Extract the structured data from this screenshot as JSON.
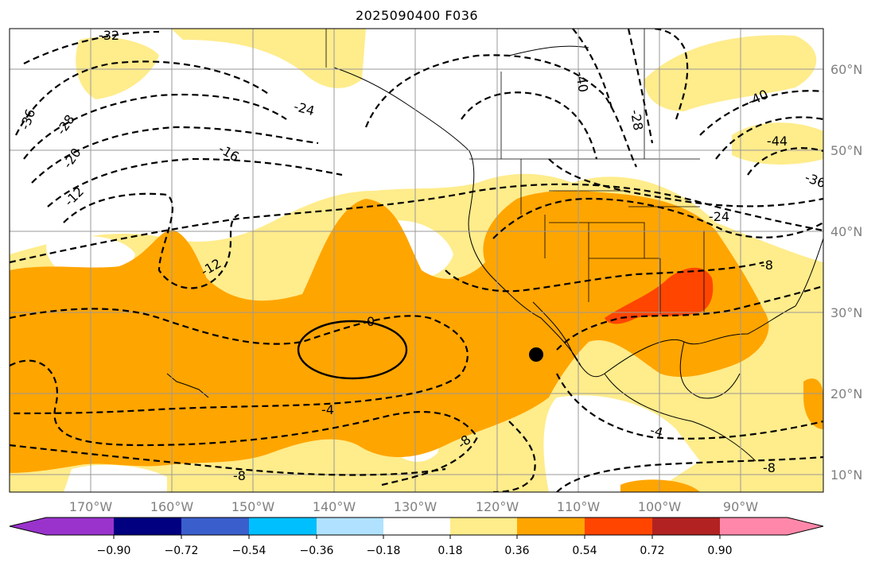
{
  "title": "2025090400 F036",
  "lat_labels": [
    "60°N",
    "50°N",
    "40°N",
    "30°N",
    "20°N",
    "10°N"
  ],
  "lon_labels": [
    "170°W",
    "160°W",
    "150°W",
    "140°W",
    "130°W",
    "120°W",
    "110°W",
    "100°W",
    "90°W"
  ],
  "contour_labels": [
    "-32",
    "-36",
    "-28",
    "-20",
    "-12",
    "-24",
    "-16",
    "-12",
    "-40",
    "-28",
    "-40",
    "-44",
    "-36",
    "-24",
    "-8",
    "0",
    "-4",
    "-8",
    "-8",
    "-4",
    "-8"
  ],
  "colorbar": {
    "ticks": [
      "−0.90",
      "−0.72",
      "−0.54",
      "−0.36",
      "−0.18",
      "0.18",
      "0.36",
      "0.54",
      "0.72",
      "0.90"
    ],
    "colors": [
      "#9933cc",
      "#000080",
      "#3a5fcd",
      "#00bfff",
      "#b0e2ff",
      "#ffffff",
      "#ffec8b",
      "#ffa500",
      "#ff4500",
      "#b22222",
      "#ff88aa"
    ]
  },
  "marker": "black-dot"
}
